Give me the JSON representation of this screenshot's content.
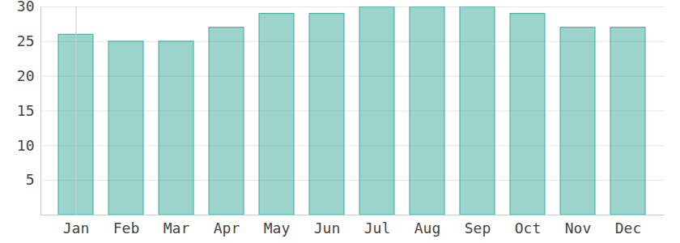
{
  "chart_data": {
    "type": "bar",
    "categories": [
      "Jan",
      "Feb",
      "Mar",
      "Apr",
      "May",
      "Jun",
      "Jul",
      "Aug",
      "Sep",
      "Oct",
      "Nov",
      "Dec"
    ],
    "values": [
      26,
      25,
      25,
      27,
      29,
      29,
      30,
      30,
      30,
      29,
      27,
      27
    ],
    "color": "#3aa99a",
    "ylim": [
      0,
      30
    ],
    "yticks": [
      5,
      10,
      15,
      20,
      25,
      30
    ],
    "grid": true
  }
}
